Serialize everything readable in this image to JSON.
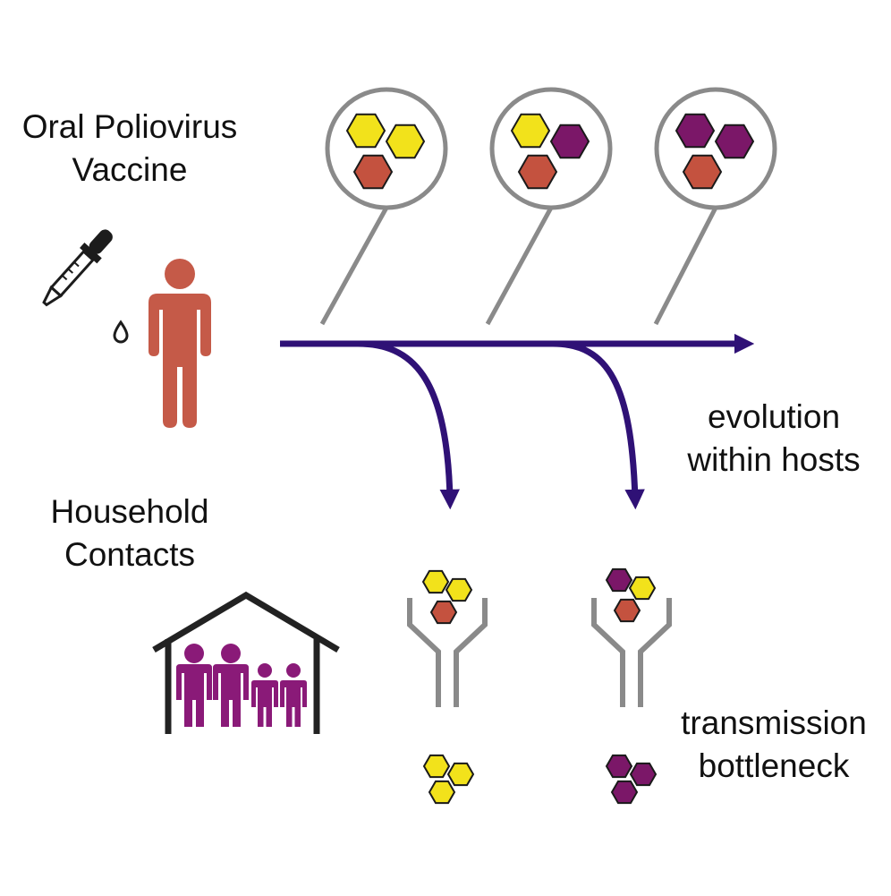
{
  "labels": {
    "vaccine_line1": "Oral Poliovirus",
    "vaccine_line2": "Vaccine",
    "household_line1": "Household",
    "household_line2": "Contacts",
    "evolution_line1": "evolution",
    "evolution_line2": "within hosts",
    "transmission_line1": "transmission",
    "transmission_line2": "bottleneck"
  },
  "colors": {
    "yellow": "#f2e21b",
    "red": "#c4523f",
    "purple": "#7b1768",
    "arrow": "#2f1176",
    "gray": "#8a8a8a",
    "person": "#c55a48",
    "household_people": "#8a1a78",
    "house": "#222222"
  },
  "icons": [
    "dropper-icon",
    "person-icon",
    "house-icon",
    "antibody-icon",
    "virus-icon",
    "magnifier-icon"
  ],
  "virus_populations": {
    "host_stages": [
      [
        "yellow",
        "yellow",
        "red"
      ],
      [
        "yellow",
        "purple",
        "red"
      ],
      [
        "purple",
        "purple",
        "red"
      ]
    ],
    "before_bottleneck": [
      [
        "yellow",
        "yellow",
        "red"
      ],
      [
        "purple",
        "yellow",
        "red"
      ]
    ],
    "after_bottleneck": [
      [
        "yellow",
        "yellow",
        "yellow"
      ],
      [
        "purple",
        "purple",
        "purple"
      ]
    ]
  }
}
